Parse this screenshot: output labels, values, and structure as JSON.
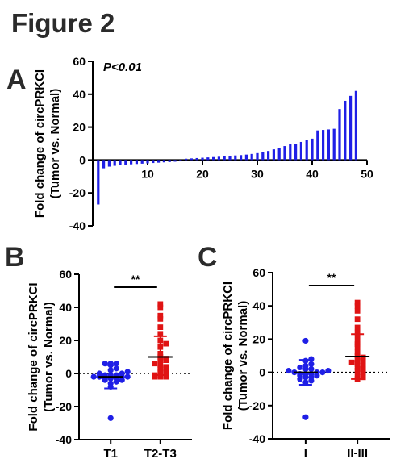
{
  "figure": {
    "title": "Figure 2"
  },
  "colors": {
    "blue": "#1f1fe6",
    "red": "#e01414",
    "axis": "#000000"
  },
  "panels": {
    "A": {
      "letter": "A"
    },
    "B": {
      "letter": "B"
    },
    "C": {
      "letter": "C"
    }
  },
  "chart_data": [
    {
      "id": "A",
      "type": "bar",
      "ylabel": [
        "Fold change of circPRKCI",
        "(Tumor vs. Normal)"
      ],
      "annotation": "P<0.01",
      "xlim": [
        0,
        50
      ],
      "ylim": [
        -40,
        60
      ],
      "xticks": [
        10,
        20,
        30,
        40,
        50
      ],
      "yticks": [
        -40,
        -20,
        0,
        20,
        40,
        60
      ],
      "x": [
        1,
        2,
        3,
        4,
        5,
        6,
        7,
        8,
        9,
        10,
        11,
        12,
        13,
        14,
        15,
        16,
        17,
        18,
        19,
        20,
        21,
        22,
        23,
        24,
        25,
        26,
        27,
        28,
        29,
        30,
        31,
        32,
        33,
        34,
        35,
        36,
        37,
        38,
        39,
        40,
        41,
        42,
        43,
        44,
        45,
        46,
        47,
        48
      ],
      "values": [
        -27,
        -5,
        -4,
        -3.5,
        -3,
        -2.8,
        -2.6,
        -2.4,
        -2.2,
        -2,
        -1.8,
        -1.6,
        -1.4,
        -1.2,
        -1,
        -0.8,
        0.8,
        1,
        1.2,
        1.4,
        1.6,
        1.8,
        2,
        2.2,
        2.5,
        2.8,
        3,
        3.3,
        3.7,
        4.2,
        4.7,
        5.5,
        6.5,
        7.5,
        8.5,
        9.5,
        10,
        11,
        12,
        13,
        18,
        18.3,
        18.6,
        19,
        31,
        36,
        39,
        42
      ]
    },
    {
      "id": "B",
      "type": "scatter",
      "ylabel": [
        "Fold change of circPRKCI",
        "(Tumor vs. Normal)"
      ],
      "categories": [
        "T1",
        "T2-T3"
      ],
      "ylim": [
        -40,
        60
      ],
      "yticks": [
        -40,
        -20,
        0,
        20,
        40,
        60
      ],
      "significance": "**",
      "series": [
        {
          "category": "T1",
          "mean": -2,
          "sd_low": -9,
          "sd_high": 5,
          "values": [
            -27,
            -8,
            -6,
            -5,
            -4,
            -4,
            -3,
            -3,
            -3,
            -2,
            -2,
            -2,
            -2,
            -1,
            -1,
            -1,
            0,
            0,
            1,
            2,
            3,
            5,
            6,
            6,
            6
          ]
        },
        {
          "category": "T2-T3",
          "mean": 10,
          "sd_low": -1,
          "sd_high": 22.5,
          "values": [
            42,
            40,
            35,
            33,
            28,
            24,
            20,
            18,
            16,
            12,
            10,
            9,
            8,
            8,
            6,
            5,
            4,
            3,
            2,
            1,
            0,
            -1,
            -2,
            -2,
            -2
          ]
        }
      ]
    },
    {
      "id": "C",
      "type": "scatter",
      "ylabel": [
        "Fold change of circPRKCI",
        "(Tumor vs. Normal)"
      ],
      "categories": [
        "I",
        "II-III"
      ],
      "ylim": [
        -40,
        60
      ],
      "yticks": [
        -40,
        -20,
        0,
        20,
        40,
        60
      ],
      "significance": "**",
      "series": [
        {
          "category": "I",
          "mean": 0,
          "sd_low": -7.5,
          "sd_high": 7.5,
          "values": [
            -27,
            -6,
            -5,
            -4,
            -3,
            -3,
            -2,
            -2,
            -1,
            -1,
            -1,
            0,
            0,
            0,
            1,
            1,
            2,
            2,
            3,
            4,
            5,
            7,
            8,
            19
          ]
        },
        {
          "category": "II-III",
          "mean": 9.5,
          "sd_low": -4,
          "sd_high": 23,
          "values": [
            42,
            40,
            37,
            32,
            27,
            24,
            21,
            18,
            17,
            15,
            12,
            10,
            9,
            8,
            7,
            6,
            5,
            4,
            3,
            2,
            1,
            0,
            -2,
            -3,
            -4
          ]
        }
      ]
    }
  ]
}
